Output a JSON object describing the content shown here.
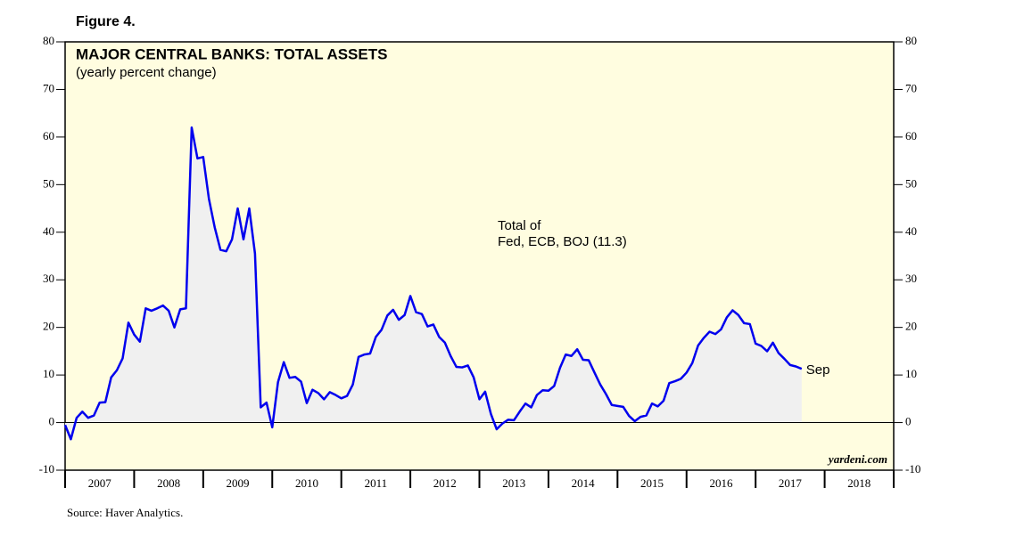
{
  "chart_data": {
    "type": "line",
    "figure_label": "Figure 4.",
    "title": "MAJOR CENTRAL BANKS: TOTAL ASSETS",
    "subtitle": "(yearly percent change)",
    "annotation": [
      "Total of",
      "Fed, ECB, BOJ (11.3)"
    ],
    "end_label": "Sep",
    "watermark": "yardeni.com",
    "source": "Source: Haver Analytics.",
    "xlim": [
      2007,
      2019
    ],
    "xticks": [
      {
        "value": 2007.5,
        "label": "2007"
      },
      {
        "value": 2008.5,
        "label": "2008"
      },
      {
        "value": 2009.5,
        "label": "2009"
      },
      {
        "value": 2010.5,
        "label": "2010"
      },
      {
        "value": 2011.5,
        "label": "2011"
      },
      {
        "value": 2012.5,
        "label": "2012"
      },
      {
        "value": 2013.5,
        "label": "2013"
      },
      {
        "value": 2014.5,
        "label": "2014"
      },
      {
        "value": 2015.5,
        "label": "2015"
      },
      {
        "value": 2016.5,
        "label": "2016"
      },
      {
        "value": 2017.5,
        "label": "2017"
      },
      {
        "value": 2018.5,
        "label": "2018"
      }
    ],
    "ylim": [
      -10,
      80
    ],
    "yticks": [
      -10,
      0,
      10,
      20,
      30,
      40,
      50,
      60,
      70,
      80
    ],
    "y2lim": [
      -10,
      80
    ],
    "y2ticks": [
      -10,
      0,
      10,
      20,
      30,
      40,
      50,
      60,
      70,
      80
    ],
    "x": [
      2007.0,
      2007.083,
      2007.167,
      2007.25,
      2007.333,
      2007.417,
      2007.5,
      2007.583,
      2007.667,
      2007.75,
      2007.833,
      2007.917,
      2008.0,
      2008.083,
      2008.167,
      2008.25,
      2008.333,
      2008.417,
      2008.5,
      2008.583,
      2008.667,
      2008.75,
      2008.833,
      2008.917,
      2009.0,
      2009.083,
      2009.167,
      2009.25,
      2009.333,
      2009.417,
      2009.5,
      2009.583,
      2009.667,
      2009.75,
      2009.833,
      2009.917,
      2010.0,
      2010.083,
      2010.167,
      2010.25,
      2010.333,
      2010.417,
      2010.5,
      2010.583,
      2010.667,
      2010.75,
      2010.833,
      2010.917,
      2011.0,
      2011.083,
      2011.167,
      2011.25,
      2011.333,
      2011.417,
      2011.5,
      2011.583,
      2011.667,
      2011.75,
      2011.833,
      2011.917,
      2012.0,
      2012.083,
      2012.167,
      2012.25,
      2012.333,
      2012.417,
      2012.5,
      2012.583,
      2012.667,
      2012.75,
      2012.833,
      2012.917,
      2013.0,
      2013.083,
      2013.167,
      2013.25,
      2013.333,
      2013.417,
      2013.5,
      2013.583,
      2013.667,
      2013.75,
      2013.833,
      2013.917,
      2014.0,
      2014.083,
      2014.167,
      2014.25,
      2014.333,
      2014.417,
      2014.5,
      2014.583,
      2014.667,
      2014.75,
      2014.833,
      2014.917,
      2015.0,
      2015.083,
      2015.167,
      2015.25,
      2015.333,
      2015.417,
      2015.5,
      2015.583,
      2015.667,
      2015.75,
      2015.833,
      2015.917,
      2016.0,
      2016.083,
      2016.167,
      2016.25,
      2016.333,
      2016.417,
      2016.5,
      2016.583,
      2016.667,
      2016.75,
      2016.833,
      2016.917,
      2017.0,
      2017.083,
      2017.167,
      2017.25,
      2017.333,
      2017.417,
      2017.5,
      2017.583,
      2017.667
    ],
    "series": [
      {
        "name": "Total of Fed, ECB, BOJ",
        "color": "#0000ee",
        "fill": "#f0f0f0",
        "values": [
          -0.5,
          -3.5,
          1,
          2.3,
          1,
          1.5,
          4.2,
          4.3,
          9.5,
          11,
          13.5,
          21,
          18.5,
          17,
          24,
          23.5,
          24,
          24.6,
          23.5,
          20,
          23.8,
          24,
          62,
          55.5,
          55.8,
          47,
          41,
          36.3,
          36,
          38.5,
          45,
          38.5,
          45,
          35.5,
          3.2,
          4.2,
          -1,
          8.5,
          12.7,
          9.4,
          9.6,
          8.6,
          4.1,
          6.9,
          6.2,
          4.9,
          6.4,
          5.8,
          5.1,
          5.6,
          8,
          13.8,
          14.3,
          14.5,
          18,
          19.5,
          22.5,
          23.7,
          21.6,
          22.6,
          26.6,
          23.2,
          22.8,
          20.2,
          20.6,
          18,
          16.8,
          14,
          11.7,
          11.6,
          12,
          9.5,
          4.9,
          6.5,
          1.8,
          -1.4,
          -0.2,
          0.6,
          0.5,
          2.3,
          4,
          3.2,
          5.8,
          6.8,
          6.7,
          7.7,
          11.5,
          14.3,
          14,
          15.4,
          13.2,
          13.1,
          10.5,
          8,
          6,
          3.7,
          3.5,
          3.3,
          1.4,
          0.3,
          1.2,
          1.5,
          4,
          3.4,
          4.6,
          8.3,
          8.7,
          9.2,
          10.5,
          12.5,
          16.2,
          17.8,
          19.1,
          18.6,
          19.6,
          22.1,
          23.6,
          22.6,
          20.9,
          20.7,
          16.6,
          16.1,
          15,
          16.8,
          14.6,
          13.4,
          12.1,
          11.8,
          11.3
        ]
      }
    ],
    "background": "#fffde0",
    "zero_line": true
  }
}
